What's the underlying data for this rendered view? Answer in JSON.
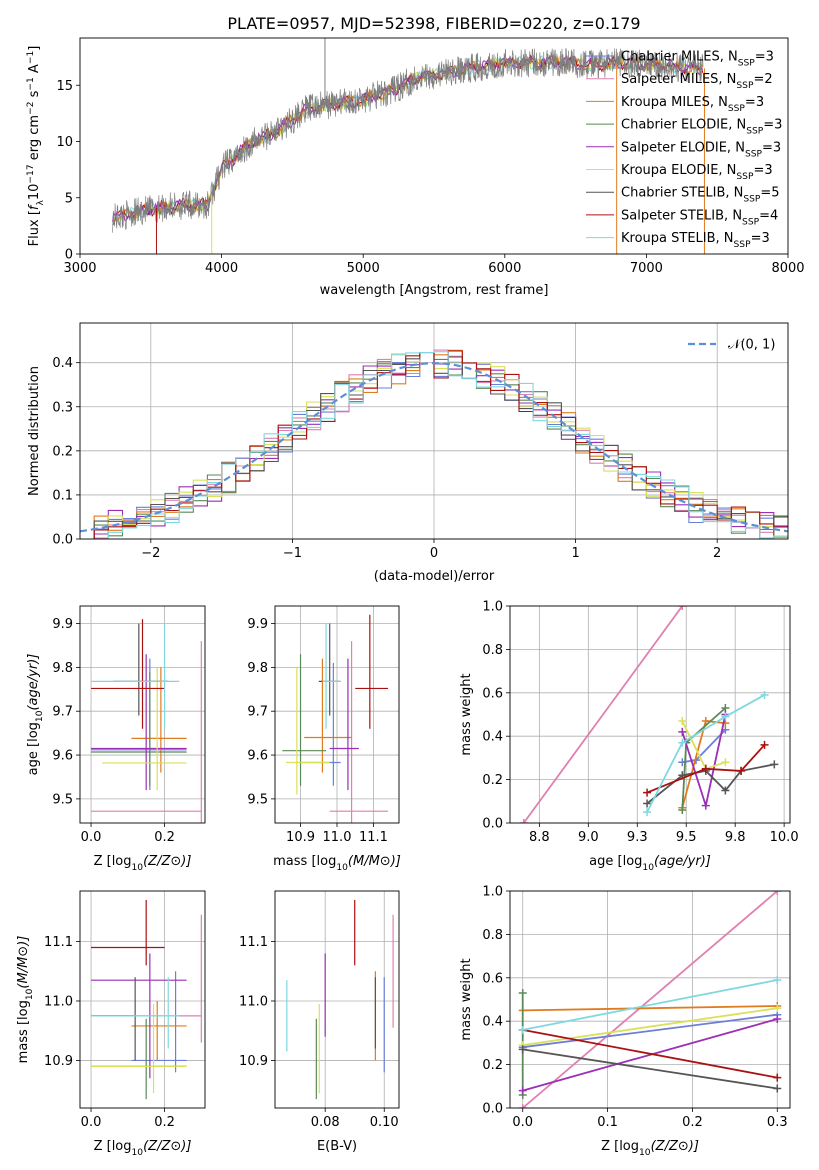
{
  "figure_title": "PLATE=0957, MJD=52398, FIBERID=0220, z=0.179",
  "colors": {
    "chabrier_miles": "#6b7fd7",
    "salpeter_miles": "#e17fb0",
    "kroupa_miles": "#e07b1f",
    "chabrier_elodie": "#5a8a55",
    "salpeter_elodie": "#9b2fb5",
    "kroupa_elodie": "#d9e05a",
    "chabrier_stelib": "#555555",
    "salpeter_stelib": "#aa1111",
    "kroupa_stelib": "#7fd8e0",
    "normal_curve": "#5b8fd9",
    "grid": "#b0b0b0"
  },
  "chart_data": [
    {
      "id": "spectrum",
      "type": "line",
      "xlabel": "wavelength [Angstrom, rest frame]",
      "ylabel": "Flux [f_λ10^-17 erg cm^-2 s^-1 A^-1]",
      "xlim": [
        3000,
        8000
      ],
      "ylim": [
        0,
        19.2
      ],
      "xticks": [
        3000,
        4000,
        5000,
        6000,
        7000,
        8000
      ],
      "yticks": [
        0,
        5,
        10,
        15
      ],
      "grid": false,
      "legend_position": "upper-right",
      "legend": [
        {
          "color_key": "chabrier_miles",
          "imf": "Chabrier",
          "lib": "MILES",
          "nssp": "3"
        },
        {
          "color_key": "salpeter_miles",
          "imf": "Salpeter",
          "lib": "MILES",
          "nssp": "2"
        },
        {
          "color_key": "kroupa_miles",
          "imf": "Kroupa",
          "lib": "MILES",
          "nssp": "3"
        },
        {
          "color_key": "chabrier_elodie",
          "imf": "Chabrier",
          "lib": "ELODIE",
          "nssp": "3"
        },
        {
          "color_key": "salpeter_elodie",
          "imf": "Salpeter",
          "lib": "ELODIE",
          "nssp": "3"
        },
        {
          "color_key": "kroupa_elodie",
          "imf": "Kroupa",
          "lib": "ELODIE",
          "nssp": "3"
        },
        {
          "color_key": "chabrier_stelib",
          "imf": "Chabrier",
          "lib": "STELIB",
          "nssp": "5"
        },
        {
          "color_key": "salpeter_stelib",
          "imf": "Salpeter",
          "lib": "STELIB",
          "nssp": "4"
        },
        {
          "color_key": "kroupa_stelib",
          "imf": "Kroupa",
          "lib": "STELIB",
          "nssp": "3"
        }
      ],
      "continuum": [
        [
          3230,
          3.2
        ],
        [
          3500,
          4.0
        ],
        [
          3700,
          4.3
        ],
        [
          3900,
          4.3
        ],
        [
          4000,
          7.6
        ],
        [
          4200,
          9.8
        ],
        [
          4400,
          11.0
        ],
        [
          4600,
          12.9
        ],
        [
          4800,
          13.4
        ],
        [
          5000,
          13.7
        ],
        [
          5200,
          14.5
        ],
        [
          5400,
          15.8
        ],
        [
          5600,
          16.1
        ],
        [
          5800,
          16.6
        ],
        [
          6000,
          17.0
        ],
        [
          6200,
          17.0
        ],
        [
          6400,
          17.1
        ],
        [
          6600,
          16.8
        ],
        [
          6800,
          17.0
        ],
        [
          7000,
          16.9
        ],
        [
          7200,
          16.6
        ],
        [
          7400,
          16.5
        ]
      ],
      "model_colors": [
        "kroupa_stelib",
        "kroupa_elodie",
        "kroupa_miles",
        "salpeter_stelib",
        "salpeter_elodie"
      ]
    },
    {
      "id": "residual_hist",
      "type": "step",
      "xlabel": "(data-model)/error",
      "ylabel": "Normed distribution",
      "xlim": [
        -2.5,
        2.5
      ],
      "ylim": [
        0,
        0.49
      ],
      "xticks": [
        -2,
        -1,
        0,
        1,
        2
      ],
      "yticks": [
        0.0,
        0.1,
        0.2,
        0.3,
        0.4
      ],
      "grid": true,
      "legend_position": "upper-right",
      "legend_label": "𝒩(0, 1)",
      "bin_width": 0.1,
      "series_colors": [
        "chabrier_miles",
        "salpeter_miles",
        "kroupa_miles",
        "chabrier_elodie",
        "salpeter_elodie",
        "kroupa_elodie",
        "chabrier_stelib",
        "salpeter_stelib",
        "kroupa_stelib"
      ]
    },
    {
      "id": "age_vs_z",
      "type": "errorbar",
      "xlabel": "Z [log10(Z/Z⊙)]",
      "ylabel": "age [log10(age/yr)]",
      "xlim": [
        -0.03,
        0.31
      ],
      "ylim": [
        9.445,
        9.94
      ],
      "xticks": [
        0.0,
        0.2
      ],
      "yticks": [
        9.5,
        9.6,
        9.7,
        9.8,
        9.9
      ],
      "grid": true,
      "points": [
        {
          "c": "chabrier_miles",
          "x": 0.16,
          "y": 9.612,
          "xerr": [
            0.0,
            0.26
          ],
          "yerr": [
            9.52,
            9.82
          ]
        },
        {
          "c": "salpeter_miles",
          "x": 0.3,
          "y": 9.472,
          "xerr": [
            0.0,
            0.3
          ],
          "yerr": [
            9.445,
            9.86
          ]
        },
        {
          "c": "kroupa_miles",
          "x": 0.19,
          "y": 9.638,
          "xerr": [
            0.11,
            0.26
          ],
          "yerr": [
            9.56,
            9.8
          ]
        },
        {
          "c": "chabrier_elodie",
          "x": 0.16,
          "y": 9.607,
          "xerr": [
            0.0,
            0.26
          ],
          "yerr": [
            9.53,
            9.79
          ]
        },
        {
          "c": "salpeter_elodie",
          "x": 0.15,
          "y": 9.615,
          "xerr": [
            0.0,
            0.26
          ],
          "yerr": [
            9.52,
            9.83
          ]
        },
        {
          "c": "kroupa_elodie",
          "x": 0.18,
          "y": 9.582,
          "xerr": [
            0.03,
            0.26
          ],
          "yerr": [
            9.52,
            9.8
          ]
        },
        {
          "c": "chabrier_stelib",
          "x": 0.13,
          "y": 9.768,
          "xerr": [
            0.06,
            0.21
          ],
          "yerr": [
            9.69,
            9.9
          ]
        },
        {
          "c": "salpeter_stelib",
          "x": 0.14,
          "y": 9.752,
          "xerr": [
            0.0,
            0.2
          ],
          "yerr": [
            9.66,
            9.91
          ]
        },
        {
          "c": "kroupa_stelib",
          "x": 0.2,
          "y": 9.768,
          "xerr": [
            0.0,
            0.24
          ],
          "yerr": [
            9.66,
            9.9
          ]
        }
      ]
    },
    {
      "id": "age_vs_mass",
      "type": "errorbar",
      "xlabel": "mass [log10(M/M⊙)]",
      "ylabel": "",
      "xlim": [
        10.83,
        11.17
      ],
      "ylim": [
        9.445,
        9.94
      ],
      "xticks": [
        10.9,
        11.0,
        11.1
      ],
      "yticks": [
        9.5,
        9.6,
        9.7,
        9.8,
        9.9
      ],
      "grid": true,
      "points": [
        {
          "c": "chabrier_miles",
          "x": 10.99,
          "y": 9.583,
          "xerr": [
            10.9,
            11.01
          ],
          "yerr": [
            9.53,
            9.81
          ]
        },
        {
          "c": "salpeter_miles",
          "x": 11.04,
          "y": 9.472,
          "xerr": [
            10.98,
            11.14
          ],
          "yerr": [
            9.445,
            9.86
          ]
        },
        {
          "c": "kroupa_miles",
          "x": 10.96,
          "y": 9.64,
          "xerr": [
            10.91,
            11.04
          ],
          "yerr": [
            9.56,
            9.82
          ]
        },
        {
          "c": "chabrier_elodie",
          "x": 10.9,
          "y": 9.61,
          "xerr": [
            10.85,
            10.97
          ],
          "yerr": [
            9.53,
            9.83
          ]
        },
        {
          "c": "salpeter_elodie",
          "x": 11.03,
          "y": 9.615,
          "xerr": [
            10.98,
            11.06
          ],
          "yerr": [
            9.52,
            9.82
          ]
        },
        {
          "c": "kroupa_elodie",
          "x": 10.89,
          "y": 9.583,
          "xerr": [
            10.86,
            10.98
          ],
          "yerr": [
            9.51,
            9.8
          ]
        },
        {
          "c": "chabrier_stelib",
          "x": 10.98,
          "y": 9.768,
          "xerr": [
            10.95,
            11.01
          ],
          "yerr": [
            9.69,
            9.9
          ]
        },
        {
          "c": "salpeter_stelib",
          "x": 11.09,
          "y": 9.752,
          "xerr": [
            11.05,
            11.14
          ],
          "yerr": [
            9.66,
            9.92
          ]
        },
        {
          "c": "kroupa_stelib",
          "x": 10.97,
          "y": 9.768,
          "xerr": [
            10.96,
            11.01
          ],
          "yerr": [
            9.66,
            9.9
          ]
        }
      ]
    },
    {
      "id": "mass_weight_vs_age",
      "type": "line",
      "xlabel": "age [log10(age/yr)]",
      "ylabel": "mass weight",
      "xlim": [
        8.6,
        10.03
      ],
      "ylim": [
        0,
        1.0
      ],
      "xticks": [
        8.75,
        9.0,
        9.25,
        9.5,
        9.75,
        10.0
      ],
      "yticks": [
        0.0,
        0.2,
        0.4,
        0.6,
        0.8,
        1.0
      ],
      "grid": true,
      "series": [
        {
          "c": "salpeter_miles",
          "x": [
            8.67,
            9.48
          ],
          "y": [
            0.0,
            1.0
          ]
        },
        {
          "c": "chabrier_miles",
          "x": [
            9.48,
            9.55,
            9.7
          ],
          "y": [
            0.28,
            0.29,
            0.43
          ]
        },
        {
          "c": "kroupa_miles",
          "x": [
            9.48,
            9.6,
            9.7
          ],
          "y": [
            0.07,
            0.47,
            0.46
          ]
        },
        {
          "c": "chabrier_elodie",
          "x": [
            9.48,
            9.5,
            9.7
          ],
          "y": [
            0.06,
            0.37,
            0.53
          ]
        },
        {
          "c": "salpeter_elodie",
          "x": [
            9.48,
            9.6,
            9.7
          ],
          "y": [
            0.42,
            0.08,
            0.5
          ]
        },
        {
          "c": "kroupa_elodie",
          "x": [
            9.48,
            9.6,
            9.7
          ],
          "y": [
            0.47,
            0.25,
            0.28
          ]
        },
        {
          "c": "chabrier_stelib",
          "x": [
            9.3,
            9.48,
            9.6,
            9.7,
            9.78,
            9.95
          ],
          "y": [
            0.09,
            0.22,
            0.24,
            0.15,
            0.24,
            0.27
          ]
        },
        {
          "c": "salpeter_stelib",
          "x": [
            9.3,
            9.6,
            9.78,
            9.9
          ],
          "y": [
            0.14,
            0.25,
            0.24,
            0.36
          ]
        },
        {
          "c": "kroupa_stelib",
          "x": [
            9.3,
            9.48,
            9.7,
            9.9
          ],
          "y": [
            0.05,
            0.37,
            0.49,
            0.59
          ]
        }
      ]
    },
    {
      "id": "mass_vs_z",
      "type": "errorbar",
      "xlabel": "Z [log10(Z/Z⊙)]",
      "ylabel": "mass [log10(M/M⊙)]",
      "xlim": [
        -0.03,
        0.31
      ],
      "ylim": [
        10.82,
        11.185
      ],
      "xticks": [
        0.0,
        0.2
      ],
      "yticks": [
        10.9,
        11.0,
        11.1
      ],
      "grid": true,
      "points": [
        {
          "c": "chabrier_miles",
          "x": 0.23,
          "y": 10.9,
          "xerr": [
            0.11,
            0.26
          ],
          "yerr": [
            10.88,
            11.05
          ]
        },
        {
          "c": "salpeter_miles",
          "x": 0.3,
          "y": 10.975,
          "xerr": [
            0.0,
            0.3
          ],
          "yerr": [
            10.93,
            11.145
          ]
        },
        {
          "c": "kroupa_miles",
          "x": 0.18,
          "y": 10.958,
          "xerr": [
            0.11,
            0.26
          ],
          "yerr": [
            10.9,
            11.0
          ]
        },
        {
          "c": "chabrier_elodie",
          "x": 0.15,
          "y": 10.89,
          "xerr": [
            0.0,
            0.26
          ],
          "yerr": [
            10.835,
            10.97
          ]
        },
        {
          "c": "salpeter_elodie",
          "x": 0.16,
          "y": 11.035,
          "xerr": [
            0.0,
            0.26
          ],
          "yerr": [
            10.87,
            11.08
          ]
        },
        {
          "c": "kroupa_elodie",
          "x": 0.17,
          "y": 10.89,
          "xerr": [
            0.0,
            0.26
          ],
          "yerr": [
            10.845,
            10.995
          ]
        },
        {
          "c": "chabrier_stelib",
          "x": 0.12,
          "y": 10.975,
          "xerr": [
            0.0,
            0.12
          ],
          "yerr": [
            10.9,
            11.04
          ]
        },
        {
          "c": "salpeter_stelib",
          "x": 0.15,
          "y": 11.09,
          "xerr": [
            0.0,
            0.2
          ],
          "yerr": [
            11.06,
            11.17
          ]
        },
        {
          "c": "kroupa_stelib",
          "x": 0.21,
          "y": 10.975,
          "xerr": [
            0.0,
            0.24
          ],
          "yerr": [
            10.92,
            11.04
          ]
        }
      ]
    },
    {
      "id": "mass_vs_ebv",
      "type": "errorbar",
      "xlabel": "E(B-V)",
      "ylabel": "",
      "xlim": [
        0.063,
        0.105
      ],
      "ylim": [
        10.82,
        11.185
      ],
      "xticks": [
        0.08,
        0.1
      ],
      "yticks": [
        10.9,
        11.0,
        11.1
      ],
      "grid": true,
      "points": [
        {
          "c": "chabrier_miles",
          "x": 0.1,
          "y": 10.975,
          "xerr": [
            0.1,
            0.1
          ],
          "yerr": [
            10.88,
            11.04
          ]
        },
        {
          "c": "salpeter_miles",
          "x": 0.103,
          "y": 11.03,
          "xerr": [
            0.103,
            0.103
          ],
          "yerr": [
            10.955,
            11.145
          ]
        },
        {
          "c": "kroupa_miles",
          "x": 0.097,
          "y": 10.975,
          "xerr": [
            0.097,
            0.097
          ],
          "yerr": [
            10.9,
            11.05
          ]
        },
        {
          "c": "chabrier_elodie",
          "x": 0.077,
          "y": 10.89,
          "xerr": [
            0.077,
            0.077
          ],
          "yerr": [
            10.835,
            10.97
          ]
        },
        {
          "c": "salpeter_elodie",
          "x": 0.08,
          "y": 11.0,
          "xerr": [
            0.08,
            0.08
          ],
          "yerr": [
            10.94,
            11.08
          ]
        },
        {
          "c": "kroupa_elodie",
          "x": 0.078,
          "y": 10.93,
          "xerr": [
            0.078,
            0.078
          ],
          "yerr": [
            10.845,
            10.995
          ]
        },
        {
          "c": "chabrier_stelib",
          "x": 0.097,
          "y": 10.975,
          "xerr": [
            0.097,
            0.097
          ],
          "yerr": [
            10.92,
            11.04
          ]
        },
        {
          "c": "salpeter_stelib",
          "x": 0.09,
          "y": 11.11,
          "xerr": [
            0.09,
            0.09
          ],
          "yerr": [
            11.06,
            11.17
          ]
        },
        {
          "c": "kroupa_stelib",
          "x": 0.067,
          "y": 10.98,
          "xerr": [
            0.067,
            0.067
          ],
          "yerr": [
            10.915,
            11.035
          ]
        }
      ]
    },
    {
      "id": "mass_weight_vs_z",
      "type": "line",
      "xlabel": "Z [log10(Z/Z⊙)]",
      "ylabel": "mass weight",
      "xlim": [
        -0.015,
        0.315
      ],
      "ylim": [
        0,
        1.0
      ],
      "xticks": [
        0.0,
        0.1,
        0.2,
        0.3
      ],
      "yticks": [
        0.0,
        0.2,
        0.4,
        0.6,
        0.8,
        1.0
      ],
      "grid": true,
      "series": [
        {
          "c": "salpeter_miles",
          "x": [
            0.0,
            0.3
          ],
          "y": [
            0.0,
            1.0
          ]
        },
        {
          "c": "chabrier_miles",
          "x": [
            0.0,
            0.3
          ],
          "y": [
            0.28,
            0.43
          ]
        },
        {
          "c": "kroupa_miles",
          "x": [
            0.0,
            0.3
          ],
          "y": [
            0.45,
            0.47
          ]
        },
        {
          "c": "chabrier_elodie",
          "x": [
            0.0,
            0.0
          ],
          "y": [
            0.06,
            0.53
          ]
        },
        {
          "c": "salpeter_elodie",
          "x": [
            0.0,
            0.3
          ],
          "y": [
            0.08,
            0.41
          ]
        },
        {
          "c": "kroupa_elodie",
          "x": [
            0.0,
            0.3
          ],
          "y": [
            0.29,
            0.46
          ]
        },
        {
          "c": "chabrier_stelib",
          "x": [
            0.0,
            0.3
          ],
          "y": [
            0.27,
            0.09
          ]
        },
        {
          "c": "salpeter_stelib",
          "x": [
            0.0,
            0.3
          ],
          "y": [
            0.36,
            0.14
          ]
        },
        {
          "c": "kroupa_stelib",
          "x": [
            0.0,
            0.3
          ],
          "y": [
            0.36,
            0.59
          ]
        }
      ]
    }
  ]
}
